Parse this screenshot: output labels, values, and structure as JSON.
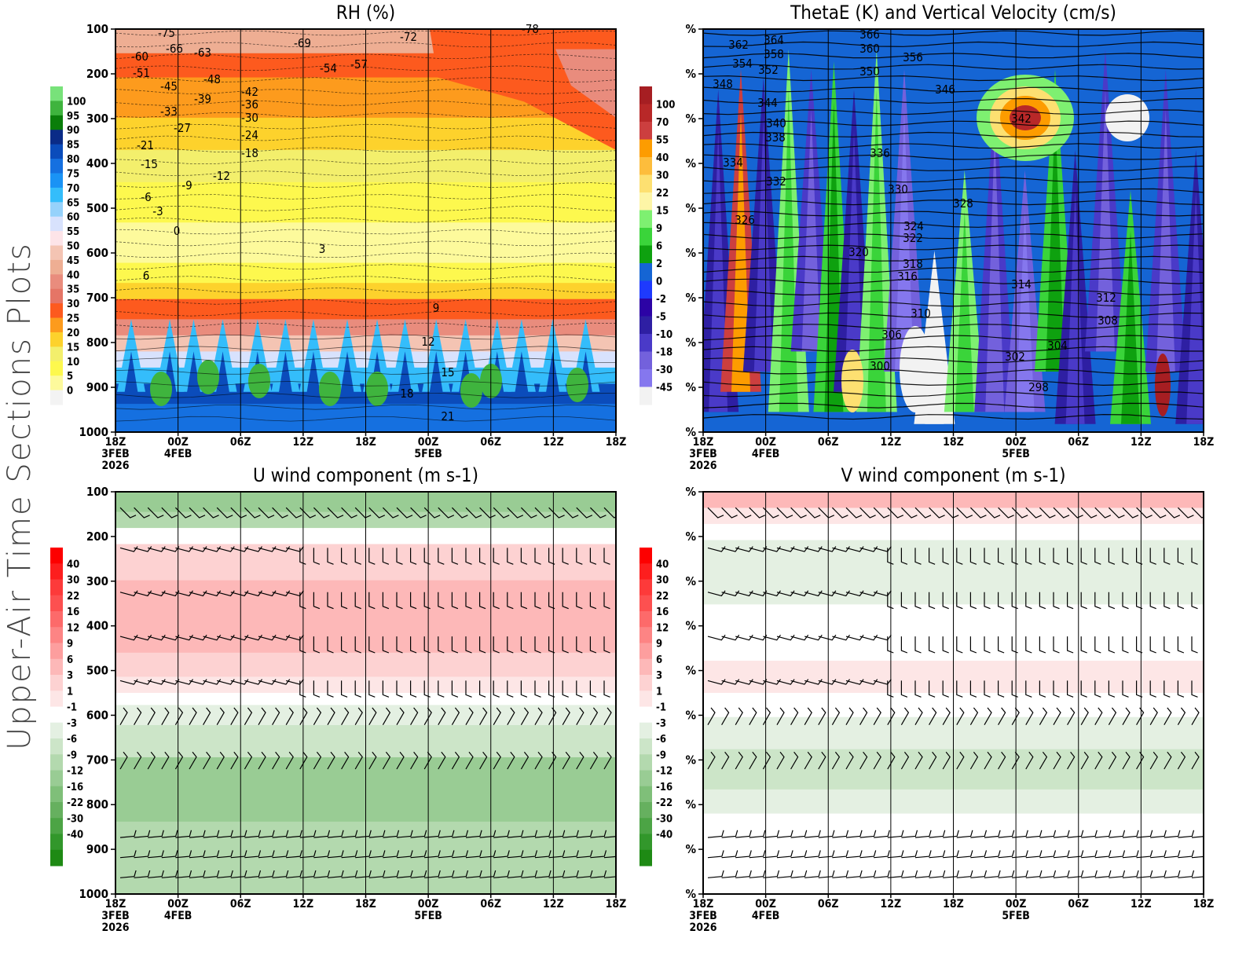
{
  "page_title": "Upper-Air Time Sections Plots",
  "time_axis": {
    "ticks": [
      "18Z",
      "00Z",
      "06Z",
      "12Z",
      "18Z",
      "00Z",
      "06Z",
      "12Z",
      "18Z"
    ],
    "date_labels": [
      {
        "tick": 0,
        "lines": [
          "3FEB",
          "2026"
        ]
      },
      {
        "tick": 1,
        "lines": [
          "4FEB"
        ]
      },
      {
        "tick": 5,
        "lines": [
          "5FEB"
        ]
      }
    ]
  },
  "chart_data": [
    {
      "id": "rh",
      "type": "heatmap",
      "title": "RH (%)",
      "xlabel": "",
      "ylabel": "",
      "y_ticks": [
        "100",
        "200",
        "300",
        "400",
        "500",
        "600",
        "700",
        "800",
        "900",
        "1000"
      ],
      "ylim": [
        100,
        1000
      ],
      "y_inverted": true,
      "colorbar": {
        "labels": [
          "100",
          "95",
          "90",
          "85",
          "80",
          "75",
          "70",
          "65",
          "60",
          "55",
          "50",
          "45",
          "40",
          "35",
          "30",
          "25",
          "20",
          "15",
          "10",
          "5",
          "0"
        ],
        "colors": [
          "#78e27a",
          "#3fb43e",
          "#0a7e0a",
          "#0a2b87",
          "#0b4cbb",
          "#1570e0",
          "#1a93f5",
          "#34bdfb",
          "#96d2fb",
          "#d8e2fd",
          "#fde4e8",
          "#f4c4b3",
          "#eeae93",
          "#e98c7d",
          "#e57566",
          "#fd5a1e",
          "#fd9b1d",
          "#fdd22c",
          "#f3ef6c",
          "#fdf84e",
          "#fdfa9c",
          "#f3f3f3"
        ]
      },
      "contour_labels": {
        "temperature_isotherms_degC": [
          "-78",
          "-75",
          "-72",
          "-69",
          "-66",
          "-63",
          "-60",
          "-57",
          "-54",
          "-51",
          "-48",
          "-45",
          "-42",
          "-39",
          "-36",
          "-33",
          "-30",
          "-27",
          "-24",
          "-21",
          "-18",
          "-15",
          "-12",
          "-9",
          "-6",
          "-3",
          "0",
          "3",
          "6",
          "9",
          "12",
          "15",
          "18",
          "21"
        ]
      },
      "field_summary": [
        {
          "level_range": [
            100,
            260
          ],
          "rh_pct": [
            20,
            35
          ]
        },
        {
          "level_range": [
            260,
            560
          ],
          "rh_pct": [
            5,
            20
          ]
        },
        {
          "level_range": [
            560,
            700
          ],
          "rh_pct": [
            15,
            40
          ]
        },
        {
          "level_range": [
            700,
            820
          ],
          "rh_pct": [
            30,
            60
          ]
        },
        {
          "level_range": [
            820,
            1000
          ],
          "rh_pct": [
            65,
            100
          ]
        }
      ]
    },
    {
      "id": "thetae",
      "type": "heatmap",
      "title": "ThetaE (K) and Vertical Velocity (cm/s)",
      "xlabel": "",
      "ylabel": "",
      "y_ticks": [
        "%",
        "%",
        "%",
        "%",
        "%",
        "%",
        "%",
        "%",
        "%",
        "%"
      ],
      "colorbar": {
        "labels": [
          "100",
          "70",
          "55",
          "40",
          "30",
          "22",
          "15",
          "9",
          "6",
          "2",
          "0",
          "-2",
          "-5",
          "-10",
          "-18",
          "-30",
          "-45"
        ],
        "colors": [
          "#a61e22",
          "#b82828",
          "#cc3f3f",
          "#fd9c00",
          "#fdbd3c",
          "#fde071",
          "#fdf5a6",
          "#7ef071",
          "#3ad43a",
          "#0ea10f",
          "#1565d4",
          "#1e3afd",
          "#2c03a5",
          "#2e1fa3",
          "#4a3ac8",
          "#7361dc",
          "#8577ee",
          "#f2f2f2"
        ]
      },
      "contour_labels": {
        "thetae_K": [
          "366",
          "364",
          "362",
          "360",
          "358",
          "356",
          "354",
          "352",
          "350",
          "348",
          "346",
          "344",
          "342",
          "340",
          "338",
          "336",
          "334",
          "332",
          "330",
          "328",
          "326",
          "324",
          "322",
          "320",
          "318",
          "316",
          "314",
          "312",
          "310",
          "308",
          "306",
          "304",
          "302",
          "300",
          "298"
        ]
      }
    },
    {
      "id": "uwind",
      "type": "heatmap",
      "title": "U wind component (m s-1)",
      "xlabel": "",
      "ylabel": "",
      "y_ticks": [
        "100",
        "200",
        "300",
        "400",
        "500",
        "600",
        "700",
        "800",
        "900",
        "1000"
      ],
      "ylim": [
        100,
        1000
      ],
      "y_inverted": true,
      "colorbar": {
        "labels": [
          "40",
          "30",
          "22",
          "16",
          "12",
          "9",
          "6",
          "3",
          "1",
          "-1",
          "-3",
          "-6",
          "-9",
          "-12",
          "-16",
          "-22",
          "-30",
          "-40"
        ],
        "colors": [
          "#fd0000",
          "#fd1e1e",
          "#fd3a3a",
          "#fd5050",
          "#fd6a6a",
          "#fd8484",
          "#fd9e9e",
          "#fdb8b8",
          "#fdd2d2",
          "#fde6e6",
          "#ffffff",
          "#e4f0e2",
          "#cce5c8",
          "#b3d9ae",
          "#99cc94",
          "#7fbf79",
          "#66b05f",
          "#4ca445",
          "#32972b",
          "#1e8a14"
        ]
      },
      "barb_levels": [
        "100",
        "200",
        "300",
        "400",
        "500",
        "600",
        "700",
        "850",
        "900",
        "950"
      ]
    },
    {
      "id": "vwind",
      "type": "heatmap",
      "title": "V wind component (m s-1)",
      "xlabel": "",
      "ylabel": "",
      "y_ticks": [
        "%",
        "%",
        "%",
        "%",
        "%",
        "%",
        "%",
        "%",
        "%",
        "%"
      ],
      "colorbar": {
        "labels": [
          "40",
          "30",
          "22",
          "16",
          "12",
          "9",
          "6",
          "3",
          "1",
          "-1",
          "-3",
          "-6",
          "-9",
          "-12",
          "-16",
          "-22",
          "-30",
          "-40"
        ],
        "colors": [
          "#fd0000",
          "#fd1e1e",
          "#fd3a3a",
          "#fd5050",
          "#fd6a6a",
          "#fd8484",
          "#fd9e9e",
          "#fdb8b8",
          "#fdd2d2",
          "#fde6e6",
          "#ffffff",
          "#e4f0e2",
          "#cce5c8",
          "#b3d9ae",
          "#99cc94",
          "#7fbf79",
          "#66b05f",
          "#4ca445",
          "#32972b",
          "#1e8a14"
        ]
      }
    }
  ]
}
